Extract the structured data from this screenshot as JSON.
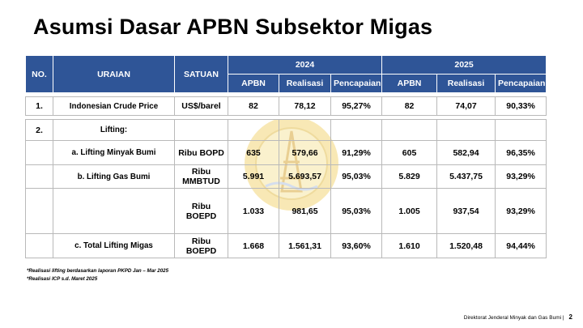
{
  "title": "Asumsi Dasar APBN Subsektor Migas",
  "table": {
    "headers": {
      "no": "NO.",
      "uraian": "URAIAN",
      "satuan": "SATUAN",
      "year1": "2024",
      "year2": "2025",
      "sub": [
        "APBN",
        "Realisasi",
        "Pencapaian",
        "APBN",
        "Realisasi",
        "Pencapaian"
      ]
    },
    "rows": [
      {
        "no": "1.",
        "uraian": "Indonesian Crude Price",
        "satuan": "US$/barel",
        "v": [
          "82",
          "78,12",
          "95,27%",
          "82",
          "74,07",
          "90,33%"
        ]
      },
      {
        "no": "2.",
        "uraian": "Lifting:",
        "satuan": "",
        "v": [
          "",
          "",
          "",
          "",
          "",
          ""
        ]
      },
      {
        "no": "",
        "uraian": "a. Lifting Minyak Bumi",
        "satuan": "Ribu BOPD",
        "v": [
          "635",
          "579,66",
          "91,29%",
          "605",
          "582,94",
          "96,35%"
        ]
      },
      {
        "no": "",
        "uraian": "b. Lifting Gas Bumi",
        "satuan": "Ribu MMBTUD",
        "v": [
          "5.991",
          "5.693,57",
          "95,03%",
          "5.829",
          "5.437,75",
          "93,29%"
        ]
      },
      {
        "no": "",
        "uraian": "",
        "satuan": "Ribu BOEPD",
        "v": [
          "1.033",
          "981,65",
          "95,03%",
          "1.005",
          "937,54",
          "93,29%"
        ]
      },
      {
        "no": "",
        "uraian": "c. Total Lifting Migas",
        "satuan": "Ribu BOEPD",
        "v": [
          "1.668",
          "1.561,31",
          "93,60%",
          "1.610",
          "1.520,48",
          "94,44%"
        ]
      }
    ]
  },
  "notes": [
    "*Realisasi lifting berdasarkan laporan PKPD Jan – Mar 2025",
    "*Realisasi ICP s.d. Maret 2025"
  ],
  "footer": {
    "org": "Direktorat Jenderal Minyak dan Gas Bumi |",
    "page": "2"
  }
}
